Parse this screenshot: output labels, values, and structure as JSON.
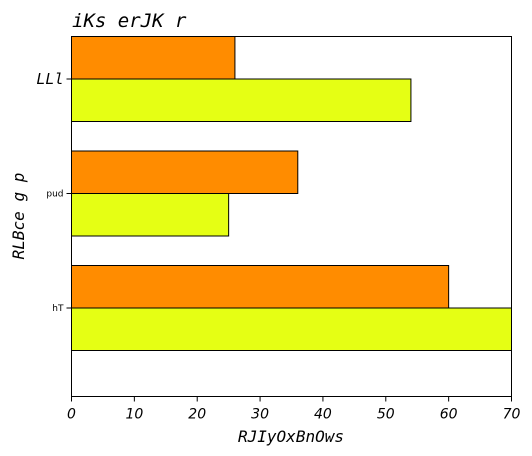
{
  "chart_data": {
    "type": "bar",
    "orientation": "horizontal",
    "title": "iKs erJK r",
    "xlabel": "RJIyOxBnOws",
    "ylabel": "RLBce g p",
    "categories": [
      "LLl",
      "pud",
      "hT"
    ],
    "series": [
      {
        "color": "#ff8c00",
        "values": [
          26,
          36,
          60
        ]
      },
      {
        "color": "#e5ff14",
        "values": [
          54,
          25,
          70
        ]
      }
    ],
    "xlim": [
      0,
      70
    ],
    "xticks": [
      0,
      10,
      20,
      30,
      40,
      50,
      60,
      70
    ],
    "grid": false
  }
}
